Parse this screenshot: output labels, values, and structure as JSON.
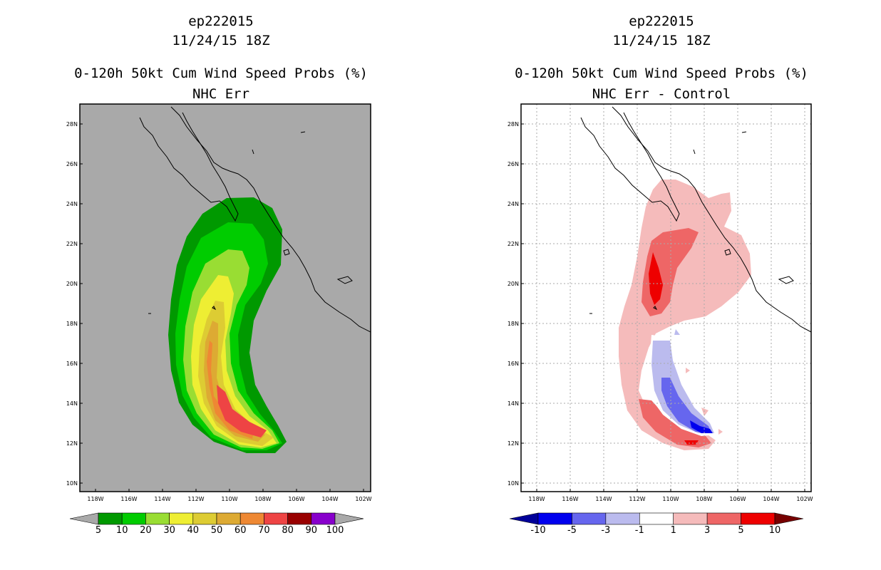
{
  "chart_data": [
    {
      "type": "contour-map",
      "storm_id": "ep222015",
      "datetime": "11/24/15 18Z",
      "title": "0-120h 50kt Cum Wind Speed Probs (%)",
      "subtitle": "NHC Err",
      "x_ticks": [
        "118W",
        "116W",
        "114W",
        "112W",
        "110W",
        "108W",
        "106W",
        "104W",
        "102W"
      ],
      "y_ticks": [
        "28N",
        "26N",
        "24N",
        "22N",
        "20N",
        "18N",
        "16N",
        "14N",
        "12N",
        "10N"
      ],
      "lon_range": [
        -119,
        -101.5
      ],
      "lat_range": [
        9.6,
        29
      ],
      "background": "#a9a9a9",
      "grid": false,
      "colorbar": {
        "labels": [
          "5",
          "10",
          "20",
          "30",
          "40",
          "50",
          "60",
          "70",
          "80",
          "90",
          "100"
        ],
        "colors": [
          "#009900",
          "#00cc00",
          "#99dd33",
          "#eeee33",
          "#ddcc33",
          "#ddaa33",
          "#ee8833",
          "#ee4444",
          "#990000",
          "#8800cc"
        ],
        "under_color": "#a9a9a9",
        "over_color": "#a9a9a9"
      }
    },
    {
      "type": "contour-map",
      "storm_id": "ep222015",
      "datetime": "11/24/15 18Z",
      "title": "0-120h 50kt Cum Wind Speed Probs (%)",
      "subtitle": "NHC Err - Control",
      "x_ticks": [
        "118W",
        "116W",
        "114W",
        "112W",
        "110W",
        "108W",
        "106W",
        "104W",
        "102W"
      ],
      "y_ticks": [
        "28N",
        "26N",
        "24N",
        "22N",
        "20N",
        "18N",
        "16N",
        "14N",
        "12N",
        "10N"
      ],
      "lon_range": [
        -119,
        -101.5
      ],
      "lat_range": [
        9.6,
        29
      ],
      "background": "#ffffff",
      "grid": true,
      "colorbar": {
        "labels": [
          "-10",
          "-5",
          "-3",
          "-1",
          "1",
          "3",
          "5",
          "10"
        ],
        "colors": [
          "#0000ee",
          "#6666ee",
          "#bbbbee",
          "#ffffff",
          "#f5bbbb",
          "#ee6666",
          "#ee0000"
        ],
        "under_color": "#000099",
        "over_color": "#770000"
      }
    }
  ]
}
